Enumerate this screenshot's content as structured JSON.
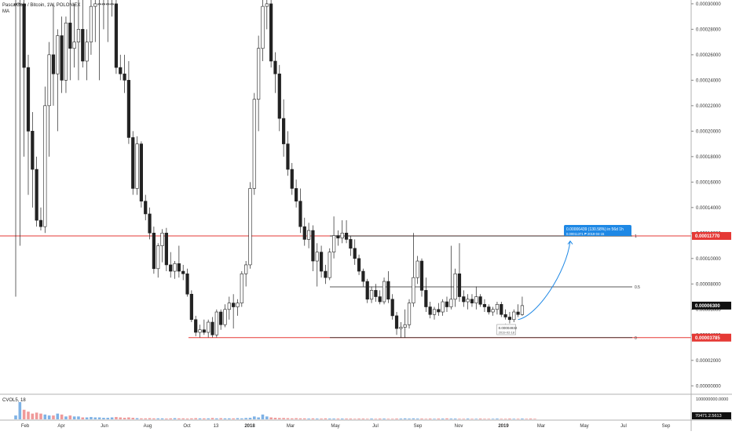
{
  "legend": {
    "title": "PascalCoin / Bitcoin, 1W, POLONIEX",
    "indicator": "MA"
  },
  "volume_label": "CVOL5, 18",
  "colors": {
    "up": "#ffffff",
    "down": "#222222",
    "wick": "#222222",
    "resistance": "#e53935",
    "support": "#e53935",
    "projection": "#1e88e5",
    "price_tag_bg": "#111111",
    "level_tag_bg": "#e53935"
  },
  "chart_data": {
    "type": "candlestick",
    "symbol": "PascalCoin / Bitcoin",
    "interval": "1W",
    "exchange": "POLONIEX",
    "y_axis_ticks": [
      "0.00030000",
      "0.00028000",
      "0.00026000",
      "0.00024000",
      "0.00022000",
      "0.00020000",
      "0.00018000",
      "0.00016000",
      "0.00014000",
      "0.00012000",
      "0.00010000",
      "0.00008000",
      "0.00006000",
      "0.00004000",
      "0.00002000",
      "0.00000000"
    ],
    "ylim": [
      -6e-06,
      0.000303
    ],
    "x_axis_ticks": [
      "Feb",
      "Apr",
      "Jun",
      "Aug",
      "Oct",
      "13",
      "2018",
      "Mar",
      "May",
      "Jul",
      "Sep",
      "Nov",
      "2019",
      "Mar",
      "May",
      "Jul",
      "Sep"
    ],
    "price_tags": {
      "last_price": "0.00006300",
      "resistance": "0.00011770",
      "support": "0.00003785"
    },
    "volume_axis": [
      "100000000.0000",
      "70471.2.5613"
    ],
    "levels": {
      "resistance": 0.0001177,
      "support": 3.785e-05,
      "fib_0_5": 7.77e-05,
      "fib_0_5_label": "0.5",
      "fib_0_label": "0",
      "fib_1_label": "1"
    },
    "annotations": {
      "projection_label_line1": "0.00006439 (130.58%) in 56d 1h",
      "projection_label_line2": "0.00011371  ₱ 2019-04-15",
      "low_label_line1": "0.00004932",
      "low_label_line2": "2019-02-18"
    },
    "candles": [
      {
        "o": 0.0003,
        "h": 0.000304,
        "l": 7e-05,
        "c": 0.0003
      },
      {
        "o": 0.0003,
        "h": 0.000304,
        "l": 0.00011,
        "c": 0.0003
      },
      {
        "o": 0.0003,
        "h": 0.000304,
        "l": 0.00018,
        "c": 0.00025
      },
      {
        "o": 0.00025,
        "h": 0.00026,
        "l": 0.00015,
        "c": 0.0002
      },
      {
        "o": 0.0002,
        "h": 0.000215,
        "l": 0.00014,
        "c": 0.00017
      },
      {
        "o": 0.00017,
        "h": 0.00018,
        "l": 0.000125,
        "c": 0.00013
      },
      {
        "o": 0.00013,
        "h": 0.00014,
        "l": 0.000122,
        "c": 0.000125
      },
      {
        "o": 0.000125,
        "h": 0.000235,
        "l": 0.00012,
        "c": 0.00022
      },
      {
        "o": 0.00022,
        "h": 0.00027,
        "l": 0.00018,
        "c": 0.00026
      },
      {
        "o": 0.00026,
        "h": 0.0003,
        "l": 0.00022,
        "c": 0.000245
      },
      {
        "o": 0.000245,
        "h": 0.00028,
        "l": 0.0002,
        "c": 0.000275
      },
      {
        "o": 0.000275,
        "h": 0.00029,
        "l": 0.00023,
        "c": 0.00024
      },
      {
        "o": 0.00024,
        "h": 0.00029,
        "l": 0.00023,
        "c": 0.000285
      },
      {
        "o": 0.000285,
        "h": 0.000304,
        "l": 0.00024,
        "c": 0.000265
      },
      {
        "o": 0.000265,
        "h": 0.0003,
        "l": 0.00025,
        "c": 0.00027
      },
      {
        "o": 0.00027,
        "h": 0.000304,
        "l": 0.00024,
        "c": 0.00028
      },
      {
        "o": 0.00028,
        "h": 0.000304,
        "l": 0.00025,
        "c": 0.000255
      },
      {
        "o": 0.000255,
        "h": 0.00028,
        "l": 0.00024,
        "c": 0.00027
      },
      {
        "o": 0.00027,
        "h": 0.000304,
        "l": 0.00026,
        "c": 0.000298
      },
      {
        "o": 0.000298,
        "h": 0.000304,
        "l": 0.00027,
        "c": 0.0003
      },
      {
        "o": 0.0003,
        "h": 0.000304,
        "l": 0.00024,
        "c": 0.0003
      },
      {
        "o": 0.0003,
        "h": 0.000304,
        "l": 0.00028,
        "c": 0.0003
      },
      {
        "o": 0.0003,
        "h": 0.000304,
        "l": 0.00027,
        "c": 0.0003
      },
      {
        "o": 0.0003,
        "h": 0.000304,
        "l": 0.00029,
        "c": 0.0003
      },
      {
        "o": 0.0003,
        "h": 0.000304,
        "l": 0.000245,
        "c": 0.00025
      },
      {
        "o": 0.00025,
        "h": 0.00026,
        "l": 0.00024,
        "c": 0.000245
      },
      {
        "o": 0.000245,
        "h": 0.00026,
        "l": 0.00023,
        "c": 0.00024
      },
      {
        "o": 0.00024,
        "h": 0.000255,
        "l": 0.00019,
        "c": 0.000195
      },
      {
        "o": 0.000195,
        "h": 0.0002,
        "l": 0.00015,
        "c": 0.000155
      },
      {
        "o": 0.000155,
        "h": 0.000196,
        "l": 0.00015,
        "c": 0.00019
      },
      {
        "o": 0.00019,
        "h": 0.000192,
        "l": 0.00014,
        "c": 0.000145
      },
      {
        "o": 0.000145,
        "h": 0.00015,
        "l": 0.00013,
        "c": 0.000135
      },
      {
        "o": 0.000135,
        "h": 0.00014,
        "l": 0.000115,
        "c": 0.00012
      },
      {
        "o": 0.00012,
        "h": 0.000125,
        "l": 8.8e-05,
        "c": 9.2e-05
      },
      {
        "o": 9.2e-05,
        "h": 0.000112,
        "l": 8.5e-05,
        "c": 0.00011
      },
      {
        "o": 0.00011,
        "h": 0.000123,
        "l": 9.7e-05,
        "c": 0.00012
      },
      {
        "o": 0.00012,
        "h": 0.000124,
        "l": 9e-05,
        "c": 9.5e-05
      },
      {
        "o": 9.5e-05,
        "h": 0.000105,
        "l": 8.5e-05,
        "c": 9e-05
      },
      {
        "o": 9e-05,
        "h": 9.8e-05,
        "l": 8.4e-05,
        "c": 9.6e-05
      },
      {
        "o": 9.6e-05,
        "h": 0.00011,
        "l": 8.5e-05,
        "c": 9e-05
      },
      {
        "o": 9e-05,
        "h": 9.5e-05,
        "l": 8.3e-05,
        "c": 8.8e-05
      },
      {
        "o": 8.8e-05,
        "h": 9.2e-05,
        "l": 7e-05,
        "c": 7.2e-05
      },
      {
        "o": 7.2e-05,
        "h": 7.5e-05,
        "l": 5e-05,
        "c": 5.2e-05
      },
      {
        "o": 5.2e-05,
        "h": 5.5e-05,
        "l": 3.9e-05,
        "c": 4.2e-05
      },
      {
        "o": 4.2e-05,
        "h": 4.8e-05,
        "l": 3.8e-05,
        "c": 4.4e-05
      },
      {
        "o": 4.4e-05,
        "h": 5.2e-05,
        "l": 4e-05,
        "c": 4.2e-05
      },
      {
        "o": 4.2e-05,
        "h": 5.2e-05,
        "l": 3.8e-05,
        "c": 5e-05
      },
      {
        "o": 5e-05,
        "h": 5.4e-05,
        "l": 3.8e-05,
        "c": 4e-05
      },
      {
        "o": 4e-05,
        "h": 6e-05,
        "l": 3.8e-05,
        "c": 5.8e-05
      },
      {
        "o": 5.8e-05,
        "h": 6e-05,
        "l": 4.4e-05,
        "c": 4.8e-05
      },
      {
        "o": 4.8e-05,
        "h": 6.4e-05,
        "l": 4.6e-05,
        "c": 6e-05
      },
      {
        "o": 6e-05,
        "h": 7e-05,
        "l": 5.2e-05,
        "c": 6.5e-05
      },
      {
        "o": 6.5e-05,
        "h": 7.2e-05,
        "l": 4.5e-05,
        "c": 6.2e-05
      },
      {
        "o": 6.2e-05,
        "h": 6.8e-05,
        "l": 5.5e-05,
        "c": 6.5e-05
      },
      {
        "o": 6.5e-05,
        "h": 9e-05,
        "l": 6.2e-05,
        "c": 8.8e-05
      },
      {
        "o": 8.8e-05,
        "h": 9.8e-05,
        "l": 7.8e-05,
        "c": 9.5e-05
      },
      {
        "o": 9.5e-05,
        "h": 0.00016,
        "l": 9.2e-05,
        "c": 0.000155
      },
      {
        "o": 0.000155,
        "h": 0.00023,
        "l": 0.00015,
        "c": 0.000225
      },
      {
        "o": 0.000225,
        "h": 0.000275,
        "l": 0.0002,
        "c": 0.000265
      },
      {
        "o": 0.000265,
        "h": 0.000304,
        "l": 0.000255,
        "c": 0.000298
      },
      {
        "o": 0.000298,
        "h": 0.000304,
        "l": 0.00028,
        "c": 0.0003
      },
      {
        "o": 0.0003,
        "h": 0.000304,
        "l": 0.00025,
        "c": 0.000255
      },
      {
        "o": 0.000255,
        "h": 0.000262,
        "l": 0.00023,
        "c": 0.000245
      },
      {
        "o": 0.000245,
        "h": 0.000252,
        "l": 0.0002,
        "c": 0.00021
      },
      {
        "o": 0.00021,
        "h": 0.000225,
        "l": 0.00018,
        "c": 0.00019
      },
      {
        "o": 0.00019,
        "h": 0.0002,
        "l": 0.000165,
        "c": 0.00017
      },
      {
        "o": 0.00017,
        "h": 0.000175,
        "l": 0.00015,
        "c": 0.000155
      },
      {
        "o": 0.000155,
        "h": 0.000162,
        "l": 0.00014,
        "c": 0.000145
      },
      {
        "o": 0.000145,
        "h": 0.000155,
        "l": 0.00012,
        "c": 0.000125
      },
      {
        "o": 0.000125,
        "h": 0.000132,
        "l": 0.00011,
        "c": 0.000115
      },
      {
        "o": 0.000115,
        "h": 0.000128,
        "l": 0.000108,
        "c": 0.000122
      },
      {
        "o": 0.000122,
        "h": 0.000126,
        "l": 9e-05,
        "c": 9.8e-05
      },
      {
        "o": 9.8e-05,
        "h": 0.000112,
        "l": 7.8e-05,
        "c": 0.000105
      },
      {
        "o": 0.000105,
        "h": 0.00011,
        "l": 8.5e-05,
        "c": 9e-05
      },
      {
        "o": 9e-05,
        "h": 9.5e-05,
        "l": 8e-05,
        "c": 8.5e-05
      },
      {
        "o": 8.5e-05,
        "h": 0.000108,
        "l": 8.3e-05,
        "c": 0.000105
      },
      {
        "o": 0.000105,
        "h": 0.000133,
        "l": 0.0001,
        "c": 0.000118
      },
      {
        "o": 0.000118,
        "h": 0.000122,
        "l": 0.00011,
        "c": 0.000116
      },
      {
        "o": 0.000116,
        "h": 0.00013,
        "l": 0.000112,
        "c": 0.00012
      },
      {
        "o": 0.00012,
        "h": 0.00013,
        "l": 0.000112,
        "c": 0.000115
      },
      {
        "o": 0.000115,
        "h": 0.000118,
        "l": 0.000102,
        "c": 0.000108
      },
      {
        "o": 0.000108,
        "h": 0.000115,
        "l": 9.5e-05,
        "c": 0.0001
      },
      {
        "o": 0.0001,
        "h": 0.000103,
        "l": 8.7e-05,
        "c": 9e-05
      },
      {
        "o": 9e-05,
        "h": 9.2e-05,
        "l": 7.8e-05,
        "c": 8.2e-05
      },
      {
        "o": 8.2e-05,
        "h": 8.4e-05,
        "l": 6.5e-05,
        "c": 6.8e-05
      },
      {
        "o": 6.8e-05,
        "h": 7.8e-05,
        "l": 6.5e-05,
        "c": 7.5e-05
      },
      {
        "o": 7.5e-05,
        "h": 8e-05,
        "l": 6.6e-05,
        "c": 7e-05
      },
      {
        "o": 7e-05,
        "h": 7.5e-05,
        "l": 6.4e-05,
        "c": 6.6e-05
      },
      {
        "o": 6.6e-05,
        "h": 8.5e-05,
        "l": 6.4e-05,
        "c": 8.2e-05
      },
      {
        "o": 8.2e-05,
        "h": 9e-05,
        "l": 6.5e-05,
        "c": 6.8e-05
      },
      {
        "o": 6.8e-05,
        "h": 7.2e-05,
        "l": 5.2e-05,
        "c": 5.5e-05
      },
      {
        "o": 5.5e-05,
        "h": 5.8e-05,
        "l": 4e-05,
        "c": 4.5e-05
      },
      {
        "o": 4.5e-05,
        "h": 5e-05,
        "l": 3.8e-05,
        "c": 4.6e-05
      },
      {
        "o": 4.6e-05,
        "h": 6e-05,
        "l": 3.8e-05,
        "c": 4.8e-05
      },
      {
        "o": 4.8e-05,
        "h": 6.8e-05,
        "l": 4.5e-05,
        "c": 6.5e-05
      },
      {
        "o": 6.5e-05,
        "h": 0.00012,
        "l": 6.2e-05,
        "c": 8.5e-05
      },
      {
        "o": 8.5e-05,
        "h": 0.000102,
        "l": 8e-05,
        "c": 9.8e-05
      },
      {
        "o": 9.8e-05,
        "h": 0.0001,
        "l": 7e-05,
        "c": 7.5e-05
      },
      {
        "o": 7.5e-05,
        "h": 8.5e-05,
        "l": 5.8e-05,
        "c": 6.2e-05
      },
      {
        "o": 6.2e-05,
        "h": 6.6e-05,
        "l": 5.3e-05,
        "c": 5.6e-05
      },
      {
        "o": 5.6e-05,
        "h": 6.2e-05,
        "l": 5.2e-05,
        "c": 6e-05
      },
      {
        "o": 6e-05,
        "h": 6.5e-05,
        "l": 5.5e-05,
        "c": 5.8e-05
      },
      {
        "o": 5.8e-05,
        "h": 6.8e-05,
        "l": 5.5e-05,
        "c": 6.6e-05
      },
      {
        "o": 6.6e-05,
        "h": 7e-05,
        "l": 5.8e-05,
        "c": 6.2e-05
      },
      {
        "o": 6.2e-05,
        "h": 0.00011,
        "l": 6e-05,
        "c": 6.8e-05
      },
      {
        "o": 6.8e-05,
        "h": 9.2e-05,
        "l": 6.2e-05,
        "c": 8.8e-05
      },
      {
        "o": 8.8e-05,
        "h": 0.000112,
        "l": 6.6e-05,
        "c": 7e-05
      },
      {
        "o": 7e-05,
        "h": 7.5e-05,
        "l": 6.2e-05,
        "c": 6.6e-05
      },
      {
        "o": 6.6e-05,
        "h": 7.2e-05,
        "l": 6e-05,
        "c": 6.8e-05
      },
      {
        "o": 6.8e-05,
        "h": 7.2e-05,
        "l": 6.2e-05,
        "c": 6.5e-05
      },
      {
        "o": 6.5e-05,
        "h": 7.8e-05,
        "l": 6e-05,
        "c": 7e-05
      },
      {
        "o": 7e-05,
        "h": 7.2e-05,
        "l": 6.2e-05,
        "c": 6.4e-05
      },
      {
        "o": 6.4e-05,
        "h": 6.8e-05,
        "l": 5.8e-05,
        "c": 6.2e-05
      },
      {
        "o": 6.2e-05,
        "h": 6.4e-05,
        "l": 5.6e-05,
        "c": 5.8e-05
      },
      {
        "o": 5.8e-05,
        "h": 6.2e-05,
        "l": 5.5e-05,
        "c": 6e-05
      },
      {
        "o": 6e-05,
        "h": 6.6e-05,
        "l": 5.6e-05,
        "c": 6.4e-05
      },
      {
        "o": 6.4e-05,
        "h": 6.6e-05,
        "l": 5.4e-05,
        "c": 5.6e-05
      },
      {
        "o": 5.6e-05,
        "h": 6e-05,
        "l": 5.2e-05,
        "c": 5.4e-05
      },
      {
        "o": 5.4e-05,
        "h": 5.8e-05,
        "l": 4.9e-05,
        "c": 5.2e-05
      },
      {
        "o": 5.2e-05,
        "h": 6e-05,
        "l": 5e-05,
        "c": 5.8e-05
      },
      {
        "o": 5.8e-05,
        "h": 6.4e-05,
        "l": 5.4e-05,
        "c": 5.6e-05
      },
      {
        "o": 5.6e-05,
        "h": 7e-05,
        "l": 5.5e-05,
        "c": 6.3e-05
      }
    ],
    "volume": [
      0.2,
      0.9,
      0.5,
      0.4,
      0.3,
      0.35,
      0.3,
      0.25,
      0.2,
      0.2,
      0.3,
      0.25,
      0.15,
      0.2,
      0.15,
      0.15,
      0.1,
      0.1,
      0.12,
      0.1,
      0.1,
      0.08,
      0.08,
      0.1,
      0.12,
      0.1,
      0.08,
      0.1,
      0.08,
      0.06,
      0.05,
      0.05,
      0.06,
      0.05,
      0.05,
      0.05,
      0.04,
      0.05,
      0.06,
      0.05,
      0.05,
      0.04,
      0.05,
      0.06,
      0.05,
      0.05,
      0.05,
      0.07,
      0.05,
      0.06,
      0.05,
      0.05,
      0.05,
      0.06,
      0.05,
      0.07,
      0.08,
      0.15,
      0.1,
      0.25,
      0.15,
      0.1,
      0.08,
      0.07,
      0.07,
      0.06,
      0.05,
      0.06,
      0.05,
      0.05,
      0.04,
      0.05,
      0.04,
      0.04,
      0.05,
      0.04,
      0.04,
      0.04,
      0.04,
      0.04,
      0.04,
      0.03,
      0.04,
      0.04,
      0.03,
      0.04,
      0.03,
      0.04,
      0.04,
      0.03,
      0.03,
      0.04,
      0.04,
      0.05,
      0.04,
      0.05,
      0.04,
      0.04,
      0.03,
      0.04,
      0.03,
      0.04,
      0.04,
      0.05,
      0.04,
      0.04,
      0.03,
      0.03,
      0.04,
      0.03,
      0.03,
      0.04,
      0.03,
      0.03,
      0.03,
      0.04,
      0.03,
      0.03,
      0.04,
      0.03,
      0.03,
      0.04,
      0.03,
      0.04,
      0.03
    ]
  }
}
